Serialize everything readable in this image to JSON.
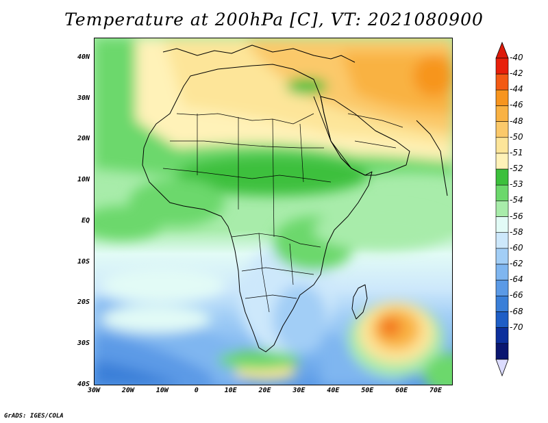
{
  "title": "Temperature at 200hPa [C], VT: 2021080900",
  "footer": "GrADS: IGES/COLA",
  "map": {
    "lat_labels": [
      "40N",
      "30N",
      "20N",
      "10N",
      "EQ",
      "10S",
      "20S",
      "30S",
      "40S"
    ],
    "lon_labels": [
      "30W",
      "20W",
      "10W",
      "0",
      "10E",
      "20E",
      "30E",
      "40E",
      "50E",
      "60E",
      "70E"
    ],
    "lat_values": [
      40,
      30,
      20,
      10,
      0,
      -10,
      -20,
      -30,
      -40
    ],
    "lon_values": [
      -30,
      -20,
      -10,
      0,
      10,
      20,
      30,
      40,
      50,
      60,
      70
    ]
  },
  "colorbar": {
    "levels": [
      "-40",
      "-42",
      "-44",
      "-46",
      "-48",
      "-50",
      "-51",
      "-52",
      "-53",
      "-54",
      "-56",
      "-58",
      "-60",
      "-62",
      "-64",
      "-66",
      "-68",
      "-70"
    ],
    "colors": [
      "#e8200a",
      "#f35a14",
      "#f7951e",
      "#f9b243",
      "#fbc96a",
      "#fde599",
      "#fff2b8",
      "#3cc03c",
      "#6cd86c",
      "#a8ecaa",
      "#e2fbf6",
      "#cde8fb",
      "#a2cef6",
      "#7fb6f0",
      "#5b9ae6",
      "#3a7fd8",
      "#1e5ec6",
      "#0c2f9c",
      "#0a1670"
    ],
    "over_color": "#dd1a0a",
    "under_color": "#dcdcff"
  }
}
